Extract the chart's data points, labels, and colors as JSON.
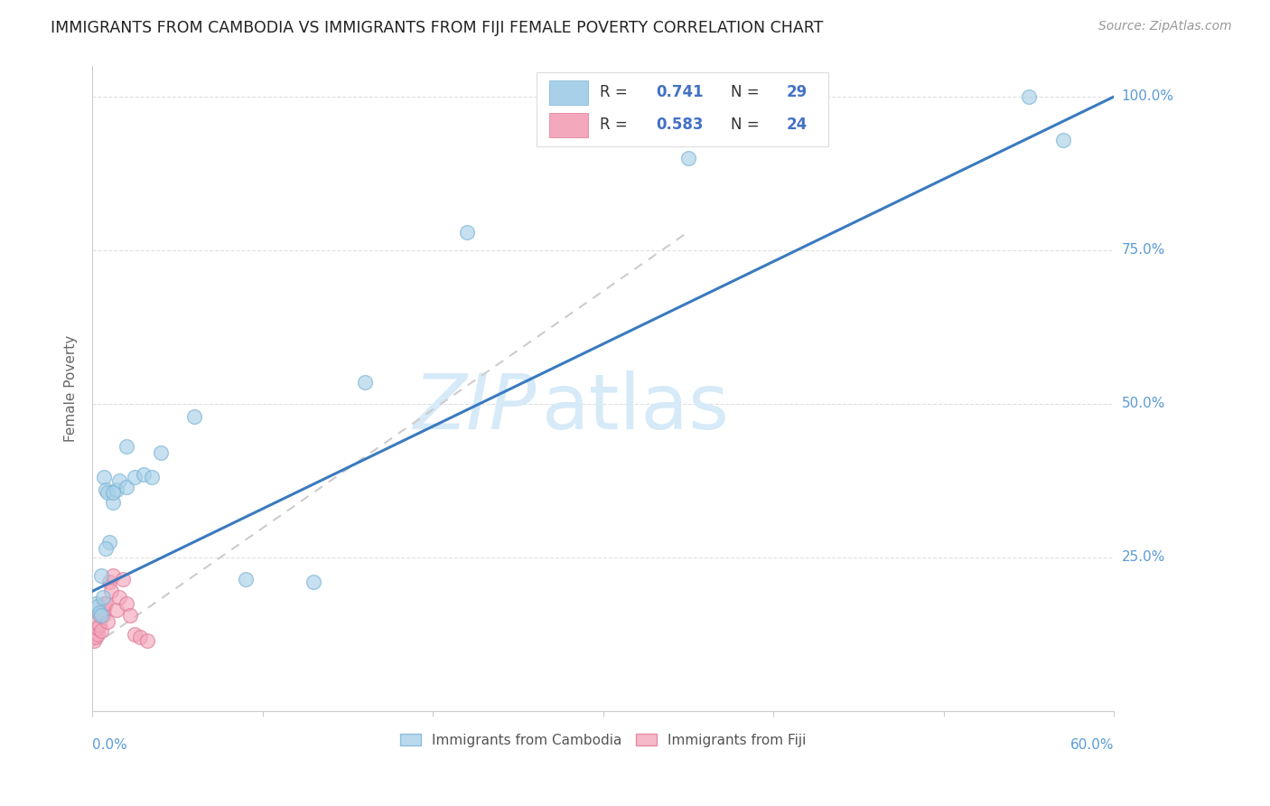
{
  "title": "IMMIGRANTS FROM CAMBODIA VS IMMIGRANTS FROM FIJI FEMALE POVERTY CORRELATION CHART",
  "source": "Source: ZipAtlas.com",
  "ylabel": "Female Poverty",
  "xlim": [
    0.0,
    0.6
  ],
  "ylim": [
    0.0,
    1.05
  ],
  "cambodia_color": "#a8d0e8",
  "cambodia_edge": "#7ab3d4",
  "fiji_color": "#f4a8bc",
  "fiji_edge": "#e07898",
  "trend_line_color": "#3a7abf",
  "trend_dashed_color": "#cccccc",
  "watermark_color": "#d6eaf8",
  "cambodia_x": [
    0.002,
    0.003,
    0.004,
    0.005,
    0.006,
    0.007,
    0.008,
    0.009,
    0.01,
    0.012,
    0.014,
    0.016,
    0.02,
    0.025,
    0.03,
    0.035,
    0.04,
    0.06,
    0.09,
    0.13,
    0.16,
    0.22,
    0.35,
    0.55,
    0.57,
    0.005,
    0.008,
    0.012,
    0.02
  ],
  "cambodia_y": [
    0.175,
    0.17,
    0.16,
    0.22,
    0.185,
    0.38,
    0.36,
    0.355,
    0.275,
    0.34,
    0.36,
    0.375,
    0.365,
    0.38,
    0.385,
    0.38,
    0.42,
    0.48,
    0.215,
    0.21,
    0.535,
    0.78,
    0.9,
    1.0,
    0.93,
    0.155,
    0.265,
    0.355,
    0.43
  ],
  "fiji_x": [
    0.001,
    0.002,
    0.003,
    0.003,
    0.004,
    0.004,
    0.005,
    0.005,
    0.006,
    0.007,
    0.007,
    0.008,
    0.009,
    0.01,
    0.011,
    0.012,
    0.014,
    0.016,
    0.018,
    0.02,
    0.022,
    0.025,
    0.028,
    0.032
  ],
  "fiji_y": [
    0.115,
    0.12,
    0.125,
    0.135,
    0.14,
    0.155,
    0.13,
    0.16,
    0.155,
    0.165,
    0.175,
    0.175,
    0.145,
    0.21,
    0.195,
    0.22,
    0.165,
    0.185,
    0.215,
    0.175,
    0.155,
    0.125,
    0.12,
    0.115
  ],
  "cam_trend_x0": 0.0,
  "cam_trend_y0": 0.195,
  "cam_trend_x1": 0.6,
  "cam_trend_y1": 1.0,
  "fiji_trend_x0": 0.0,
  "fiji_trend_y0": 0.105,
  "fiji_trend_x1": 0.35,
  "fiji_trend_y1": 0.78
}
